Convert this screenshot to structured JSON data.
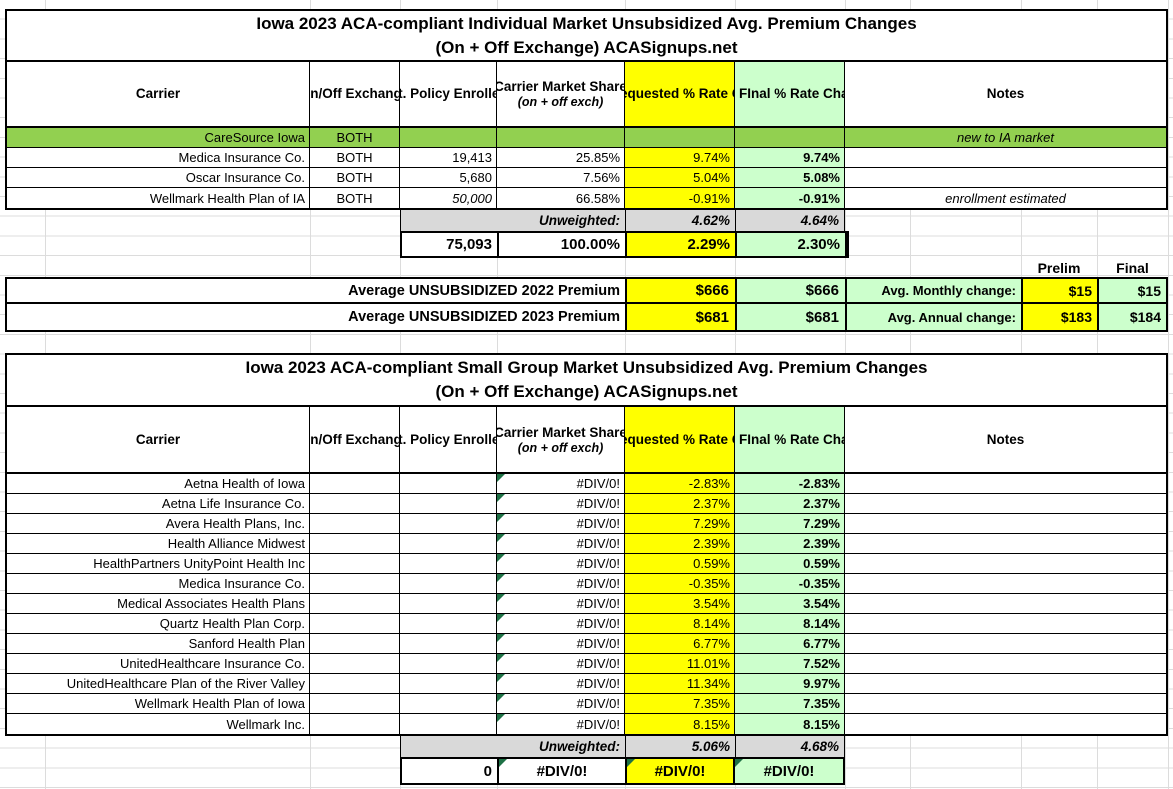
{
  "palette": {
    "row_highlight_green": "#92D050",
    "requested_yellow": "#FFFF00",
    "final_mint_green": "#CCFFCC",
    "unweighted_gray": "#D9D9D9",
    "error_flag_green": "#1E7145"
  },
  "headers": {
    "carrier": "Carrier",
    "exchange": "On/Off\nExchange",
    "enrollees": "Est. Policy\nEnrollees",
    "share": "Carrier Market\nShare",
    "share_note": "(on + off exch)",
    "requested": "Avg.\nRequested\n% Rate Change",
    "final": "Avg. FInal\n% Rate Change",
    "notes": "Notes"
  },
  "individual": {
    "title": "Iowa 2023 ACA-compliant Individual Market Unsubsidized Avg. Premium Changes",
    "subtitle": "(On + Off Exchange) ACASignups.net",
    "rows": [
      {
        "carrier": "CareSource Iowa",
        "exchange": "BOTH",
        "enrollees": "",
        "share": "",
        "requested": "",
        "final": "",
        "notes": "new to IA market"
      },
      {
        "carrier": "Medica Insurance Co.",
        "exchange": "BOTH",
        "enrollees": "19,413",
        "share": "25.85%",
        "requested": "9.74%",
        "final": "9.74%",
        "notes": ""
      },
      {
        "carrier": "Oscar Insurance Co.",
        "exchange": "BOTH",
        "enrollees": "5,680",
        "share": "7.56%",
        "requested": "5.04%",
        "final": "5.08%",
        "notes": ""
      },
      {
        "carrier": "Wellmark Health Plan of IA",
        "exchange": "BOTH",
        "enrollees": "50,000",
        "share": "66.58%",
        "requested": "-0.91%",
        "final": "-0.91%",
        "notes": "enrollment estimated"
      }
    ],
    "unweighted": {
      "label": "Unweighted:",
      "requested": "4.62%",
      "final": "4.64%"
    },
    "total": {
      "enrollees": "75,093",
      "share": "100.00%",
      "requested": "2.29%",
      "final": "2.30%"
    }
  },
  "summary": {
    "prelim_header": "Prelim",
    "final_header": "Final",
    "premium2022": {
      "label": "Average UNSUBSIDIZED 2022 Premium",
      "requested": "$666",
      "final": "$666"
    },
    "premium2023": {
      "label": "Average UNSUBSIDIZED 2023 Premium",
      "requested": "$681",
      "final": "$681"
    },
    "monthly": {
      "label": "Avg. Monthly change:",
      "prelim": "$15",
      "final": "$15"
    },
    "annual": {
      "label": "Avg. Annual change:",
      "prelim": "$183",
      "final": "$184"
    }
  },
  "smallgroup": {
    "title": "Iowa 2023 ACA-compliant Small Group Market Unsubsidized Avg. Premium Changes",
    "subtitle": "(On + Off Exchange) ACASignups.net",
    "rows": [
      {
        "carrier": "Aetna Health of Iowa",
        "share": "#DIV/0!",
        "requested": "-2.83%",
        "final": "-2.83%"
      },
      {
        "carrier": "Aetna Life Insurance Co.",
        "share": "#DIV/0!",
        "requested": "2.37%",
        "final": "2.37%"
      },
      {
        "carrier": "Avera Health Plans, Inc.",
        "share": "#DIV/0!",
        "requested": "7.29%",
        "final": "7.29%"
      },
      {
        "carrier": "Health Alliance Midwest",
        "share": "#DIV/0!",
        "requested": "2.39%",
        "final": "2.39%"
      },
      {
        "carrier": "HealthPartners UnityPoint Health Inc",
        "share": "#DIV/0!",
        "requested": "0.59%",
        "final": "0.59%"
      },
      {
        "carrier": "Medica Insurance Co.",
        "share": "#DIV/0!",
        "requested": "-0.35%",
        "final": "-0.35%"
      },
      {
        "carrier": "Medical Associates Health Plans",
        "share": "#DIV/0!",
        "requested": "3.54%",
        "final": "3.54%"
      },
      {
        "carrier": "Quartz Health Plan Corp.",
        "share": "#DIV/0!",
        "requested": "8.14%",
        "final": "8.14%"
      },
      {
        "carrier": "Sanford Health Plan",
        "share": "#DIV/0!",
        "requested": "6.77%",
        "final": "6.77%"
      },
      {
        "carrier": "UnitedHealthcare Insurance Co.",
        "share": "#DIV/0!",
        "requested": "11.01%",
        "final": "7.52%"
      },
      {
        "carrier": "UnitedHealthcare Plan of the River Valley",
        "share": "#DIV/0!",
        "requested": "11.34%",
        "final": "9.97%"
      },
      {
        "carrier": "Wellmark Health Plan of Iowa",
        "share": "#DIV/0!",
        "requested": "7.35%",
        "final": "7.35%"
      },
      {
        "carrier": "Wellmark Inc.",
        "share": "#DIV/0!",
        "requested": "8.15%",
        "final": "8.15%"
      }
    ],
    "unweighted": {
      "label": "Unweighted:",
      "requested": "5.06%",
      "final": "4.68%"
    },
    "total": {
      "enrollees": "0",
      "share": "#DIV/0!",
      "requested": "#DIV/0!",
      "final": "#DIV/0!"
    }
  }
}
